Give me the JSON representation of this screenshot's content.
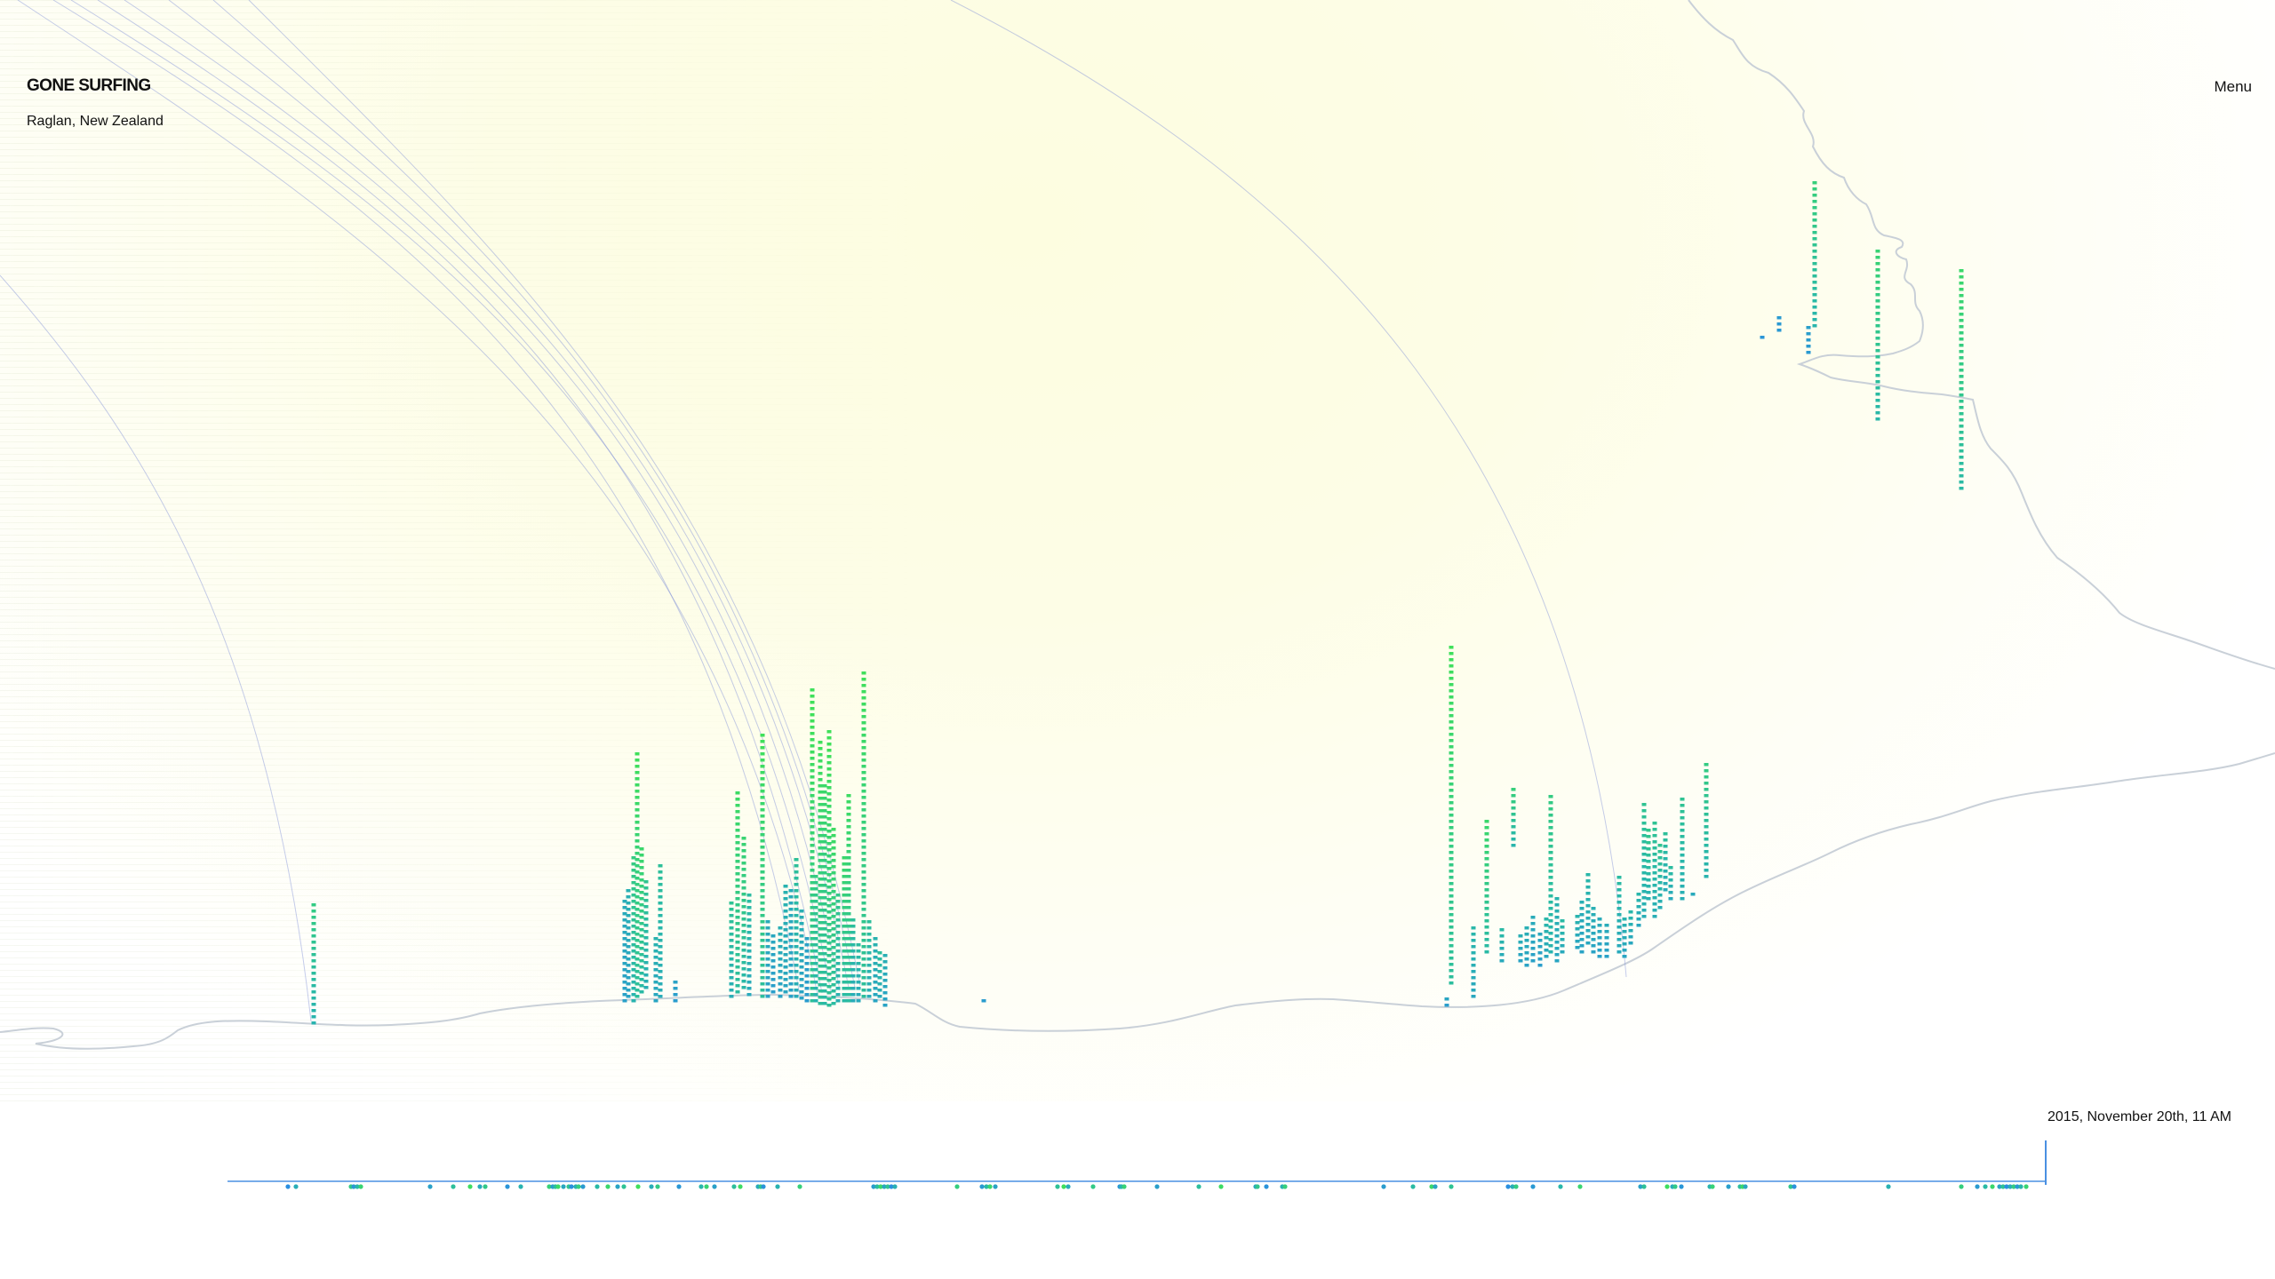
{
  "header": {
    "brand": "GONE SURFING",
    "location": "Raglan, New Zealand",
    "menu_label": "Menu"
  },
  "timeline": {
    "current_time": "2015, November 20th, 11 AM"
  },
  "colors": {
    "background_glow": "#fdfde0",
    "coastline": "#c9d0d8",
    "swell_arc": "#7f8fd8",
    "wave_bar_low": "#2a8fe0",
    "wave_bar_mid": "#29b8a8",
    "wave_bar_high": "#3fe05a",
    "timeline_line": "#4a90e2"
  },
  "icons": {
    "swell_arcs": "swell-arc-lines",
    "coastline": "coastline-outline",
    "wave_bars": "wave-height-bars",
    "timeline_cursor": "timeline-cursor-marker"
  }
}
